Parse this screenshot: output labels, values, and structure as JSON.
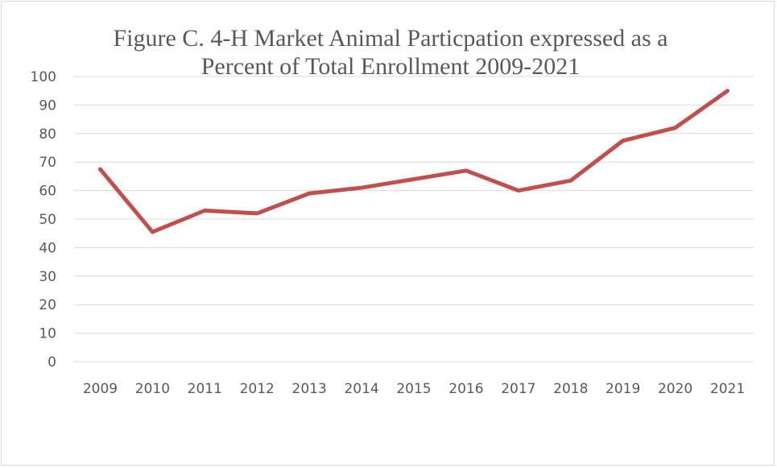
{
  "chart_data": {
    "type": "line",
    "title": "Figure C. 4-H Market Animal Particpation expressed as a Percent of Total Enrollment 2009-2021",
    "title_lines": [
      "Figure C. 4-H Market Animal Particpation expressed as a",
      "Percent of Total Enrollment 2009-2021"
    ],
    "xlabel": "",
    "ylabel": "",
    "categories": [
      "2009",
      "2010",
      "2011",
      "2012",
      "2013",
      "2014",
      "2015",
      "2016",
      "2017",
      "2018",
      "2019",
      "2020",
      "2021"
    ],
    "series": [
      {
        "values": [
          67.5,
          45.5,
          53,
          52,
          59,
          61,
          64,
          67,
          60,
          63.5,
          77.5,
          82,
          95
        ],
        "color": "#c0504d"
      }
    ],
    "ylim": [
      0,
      100
    ],
    "yticks": [
      "0",
      "10",
      "20",
      "30",
      "40",
      "50",
      "60",
      "70",
      "80",
      "90",
      "100"
    ],
    "grid": true,
    "legend": "none"
  }
}
